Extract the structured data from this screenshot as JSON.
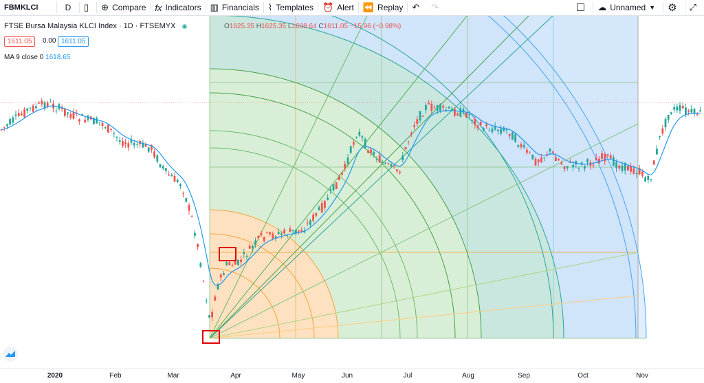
{
  "toolbar": {
    "symbol": "FBMKLCI",
    "interval": "D",
    "compare": "Compare",
    "indicators": "Indicators",
    "financials": "Financials",
    "templates": "Templates",
    "alert": "Alert",
    "replay": "Replay",
    "layout_name": "Unnamed"
  },
  "legend": {
    "title": "FTSE Bursa Malaysia KLCI Index · 1D · FTSEMYX",
    "open_label": "O",
    "open": "1625.35",
    "high_label": "H",
    "high": "1625.35",
    "low_label": "L",
    "low": "1608.64",
    "close_label": "C",
    "close": "1611.05",
    "change": "−15.96 (−0.98%)",
    "bid": "1611.05",
    "spread": "0.00",
    "ask": "1611.05",
    "ma_label": "MA 9 close 0",
    "ma_value": "1618.65"
  },
  "xaxis": [
    "2020",
    "Feb",
    "Mar",
    "Apr",
    "May",
    "Jun",
    "Jul",
    "Aug",
    "Sep",
    "Oct",
    "Nov"
  ],
  "colors": {
    "up": "#26a69a",
    "down": "#ef5350",
    "ma": "#2196f3",
    "fan_orange": "#ffe0b2",
    "fan_green": "#c8e6c9",
    "fan_blue": "#bbdefb",
    "highlight_box": "#e00000"
  },
  "icons": [
    "candles-icon",
    "compare-plus-icon",
    "fx-icon",
    "financials-icon",
    "templates-icon",
    "alert-clock-icon",
    "replay-icon",
    "undo-icon",
    "redo-icon",
    "fullscreen-icon",
    "cloud-icon",
    "gear-icon",
    "expand-icon"
  ]
}
